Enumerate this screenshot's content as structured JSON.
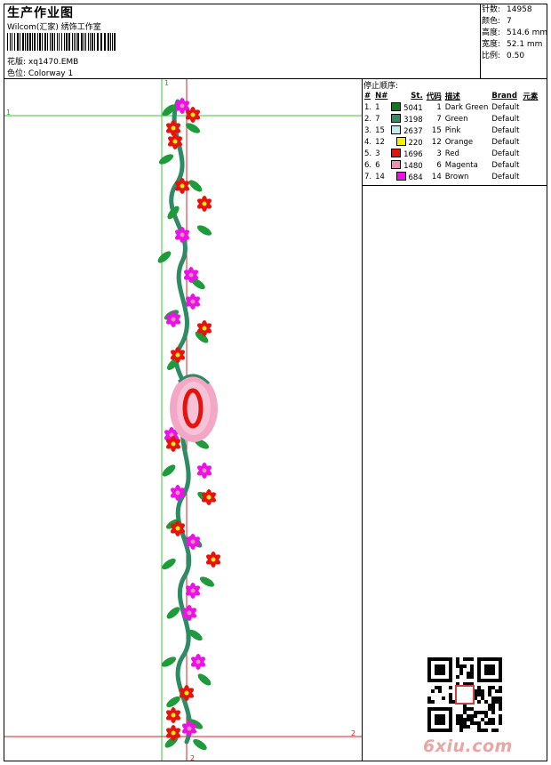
{
  "header": {
    "title": "生产作业图",
    "subtitle": "Wilcom(汇家) 绣饰工作室",
    "design_label": "花版:",
    "design_value": "xq1470.EMB",
    "colorway_label": "色位:",
    "colorway_value": "Colorway 1"
  },
  "stats": [
    {
      "label": "针数:",
      "value": "14958"
    },
    {
      "label": "颜色:",
      "value": "7"
    },
    {
      "label": "高度:",
      "value": "514.6 mm"
    },
    {
      "label": "宽度:",
      "value": "52.1 mm"
    },
    {
      "label": "比例:",
      "value": "0.50"
    }
  ],
  "stop_sequence": {
    "title": "停止顺序:",
    "headers": [
      "#",
      "N#",
      "St.",
      "代码",
      "描述",
      "Brand",
      "元素"
    ],
    "rows": [
      {
        "idx": "1.",
        "n": "1",
        "color": "#0a7a1e",
        "st": "5041",
        "code": "1",
        "desc": "Dark Green",
        "brand": "Default"
      },
      {
        "idx": "2.",
        "n": "7",
        "color": "#2e8b65",
        "st": "3198",
        "code": "7",
        "desc": "Green",
        "brand": "Default"
      },
      {
        "idx": "3.",
        "n": "15",
        "color": "#bfeef0",
        "st": "2637",
        "code": "15",
        "desc": "Pink",
        "brand": "Default"
      },
      {
        "idx": "4.",
        "n": "12",
        "color": "#f5f000",
        "st": "220",
        "code": "12",
        "desc": "Orange",
        "brand": "Default"
      },
      {
        "idx": "5.",
        "n": "3",
        "color": "#e8120c",
        "st": "1696",
        "code": "3",
        "desc": "Red",
        "brand": "Default"
      },
      {
        "idx": "6.",
        "n": "6",
        "color": "#f08fb4",
        "st": "1480",
        "code": "6",
        "desc": "Magenta",
        "brand": "Default"
      },
      {
        "idx": "7.",
        "n": "14",
        "color": "#ee10e8",
        "st": "684",
        "code": "14",
        "desc": "Brown",
        "brand": "Default"
      }
    ]
  },
  "markers": {
    "h1": "1",
    "v1": "1",
    "h2": "2",
    "v2": "2"
  },
  "watermark": "6xiu.com"
}
